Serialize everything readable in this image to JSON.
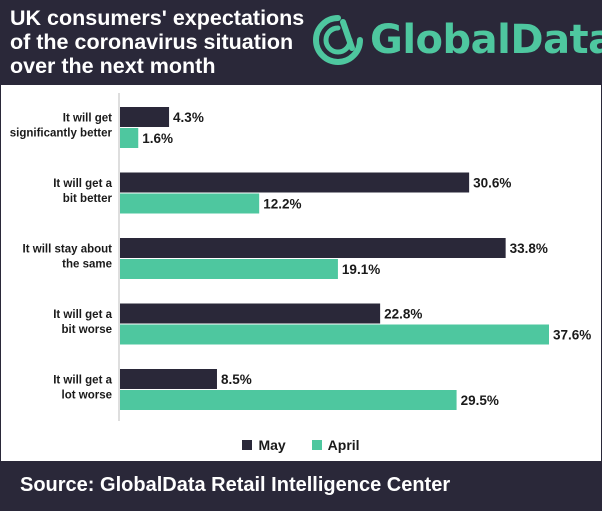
{
  "header": {
    "title": "UK consumers' expectations of the coronavirus situation over the next month",
    "logo_text": "GlobalData.",
    "logo_icon": "globaldata-logo-icon"
  },
  "legend": {
    "items": [
      {
        "label": "May",
        "color": "#2a2839"
      },
      {
        "label": "April",
        "color": "#4ec79f"
      }
    ]
  },
  "footer": {
    "source": "Source: GlobalData Retail Intelligence Center"
  },
  "chart_data": {
    "type": "bar",
    "orientation": "horizontal",
    "categories": [
      [
        "It will get",
        "significantly better"
      ],
      [
        "It will get a",
        "bit better"
      ],
      [
        "It will stay about",
        "the same"
      ],
      [
        "It will get a",
        "bit worse"
      ],
      [
        "It will get a",
        "lot worse"
      ]
    ],
    "series": [
      {
        "name": "May",
        "color": "#2a2839",
        "values": [
          4.3,
          30.6,
          33.8,
          22.8,
          8.5
        ]
      },
      {
        "name": "April",
        "color": "#4ec79f",
        "values": [
          1.6,
          12.2,
          19.1,
          37.6,
          29.5
        ]
      }
    ],
    "value_suffix": "%",
    "xlim": [
      0,
      37.6
    ],
    "grid": false,
    "legend_position": "bottom"
  }
}
